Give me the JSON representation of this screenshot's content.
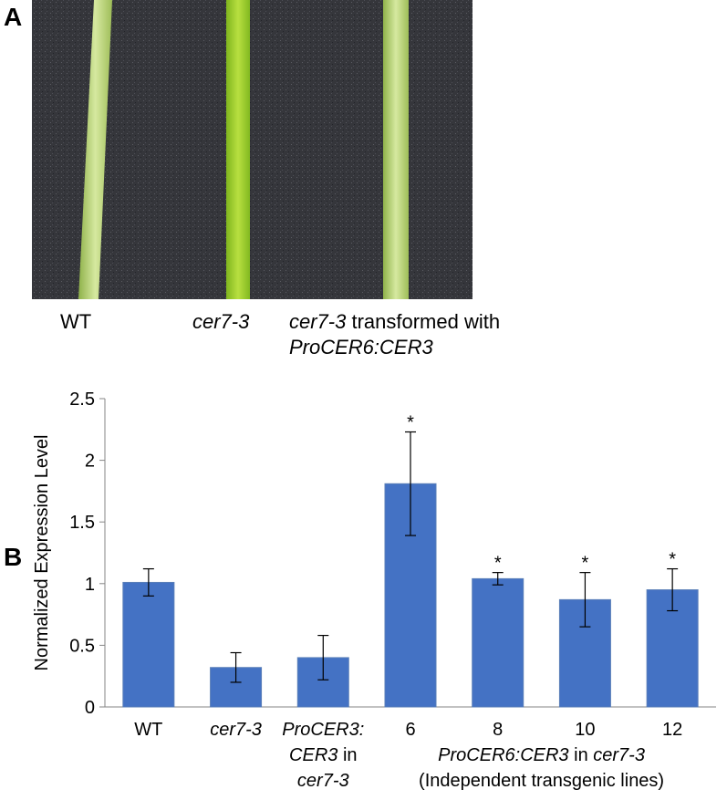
{
  "panel_a": {
    "label": "A",
    "captions": [
      {
        "lines": [
          [
            {
              "text": "WT",
              "italic": false
            }
          ]
        ]
      },
      {
        "lines": [
          [
            {
              "text": "cer7-3",
              "italic": true
            }
          ]
        ]
      },
      {
        "lines": [
          [
            {
              "text": "cer7-3",
              "italic": true
            },
            {
              "text": " transformed with",
              "italic": false
            }
          ],
          [
            {
              "text": "ProCER6:CER3",
              "italic": true
            }
          ]
        ]
      }
    ]
  },
  "chart_data": {
    "type": "bar",
    "panel_label": "B",
    "y_label": "Normalized Expression Level",
    "categories": [
      {
        "lines": [
          [
            {
              "text": "WT",
              "italic": false
            }
          ]
        ]
      },
      {
        "lines": [
          [
            {
              "text": "cer7-3",
              "italic": true
            }
          ]
        ]
      },
      {
        "lines": [
          [
            {
              "text": "ProCER3:",
              "italic": true
            }
          ],
          [
            {
              "text": "CER3",
              "italic": true
            },
            {
              "text": " in",
              "italic": false
            }
          ],
          [
            {
              "text": "cer7-3",
              "italic": true
            }
          ]
        ]
      },
      {
        "lines": [
          [
            {
              "text": "6",
              "italic": false
            }
          ]
        ]
      },
      {
        "lines": [
          [
            {
              "text": "8",
              "italic": false
            }
          ]
        ]
      },
      {
        "lines": [
          [
            {
              "text": "10",
              "italic": false
            }
          ]
        ]
      },
      {
        "lines": [
          [
            {
              "text": "12",
              "italic": false
            }
          ]
        ]
      }
    ],
    "group_label": {
      "lines": [
        [
          {
            "text": "ProCER6:CER3",
            "italic": true
          },
          {
            "text": " in ",
            "italic": false
          },
          {
            "text": "cer7-3",
            "italic": true
          }
        ],
        [
          {
            "text": "(Independent transgenic lines)",
            "italic": false
          }
        ]
      ]
    },
    "values": [
      1.01,
      0.32,
      0.4,
      1.81,
      1.04,
      0.87,
      0.95
    ],
    "errors": [
      0.11,
      0.12,
      0.18,
      0.42,
      0.05,
      0.22,
      0.17
    ],
    "significance": [
      null,
      null,
      null,
      "*",
      "*",
      "*",
      "*"
    ],
    "color": "#4472c4",
    "ylim": [
      0,
      2.5
    ],
    "yticks": [
      0,
      0.5,
      1,
      1.5,
      2,
      2.5
    ]
  }
}
